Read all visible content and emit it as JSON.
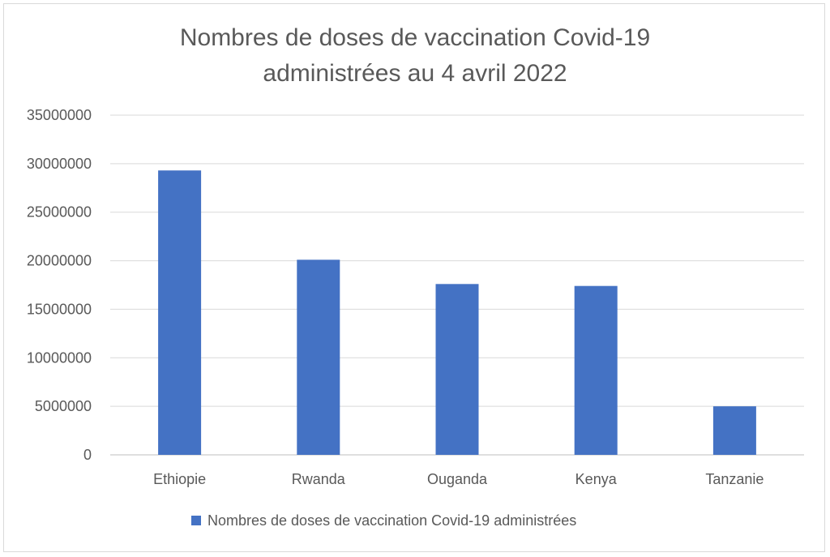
{
  "chart_data": {
    "type": "bar",
    "title_lines": [
      "Nombres de doses de vaccination Covid-19",
      "administrées au 4 avril 2022"
    ],
    "categories": [
      "Ethiopie",
      "Rwanda",
      "Ouganda",
      "Kenya",
      "Tanzanie"
    ],
    "series": [
      {
        "name": "Nombres de doses de vaccination Covid-19 administrées",
        "color": "#4472c4",
        "values": [
          29300000,
          20100000,
          17600000,
          17400000,
          5000000
        ]
      }
    ],
    "yticks": [
      "0",
      "5000000",
      "10000000",
      "15000000",
      "20000000",
      "25000000",
      "30000000",
      "35000000"
    ],
    "ylim": [
      0,
      35000000
    ],
    "grid": true,
    "legend_position": "bottom"
  }
}
